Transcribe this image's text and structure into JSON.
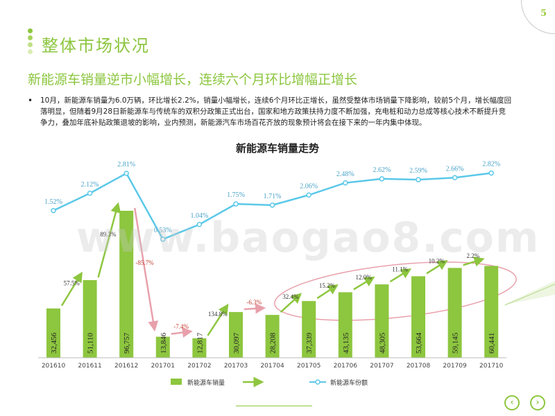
{
  "page_number": "5",
  "page_title": "整体市场状况",
  "subtitle": "新能源车销量逆市小幅增长，连续六个月环比增幅正增长",
  "bullet": "10月，新能源车销量为6.0万辆，环比增长2.2%，销量小幅增长，连续6个月环比正增长，虽然受整体市场销量下降影响，较前5个月，增长幅度回落明显，但随着9月28日新能源车与传统车的双积分政策正式出台，国家和地方政策扶持力度不断加强，充电桩和动力总成等核心技术不断提升竞争力，叠加年底补贴政策退坡的影响，业内预测，新能源汽车市场百花齐放的现象预计将会在接下来的一年内集中体现。",
  "watermark": "www.baogao8.com",
  "colors": {
    "accent": "#8cc63f",
    "bar": "#8dc63f",
    "line": "#5bc8e8",
    "negative": "#c0392b",
    "ellipse": "#e8a0ab"
  },
  "nav": {
    "prev_icon": "chevron-left-icon",
    "next_icon": "chevron-right-icon"
  },
  "chart_data": {
    "type": "bar+line",
    "title": "新能源车销量走势",
    "categories": [
      "201610",
      "201611",
      "201612",
      "201701",
      "201702",
      "201703",
      "201704",
      "201705",
      "201706",
      "201707",
      "201708",
      "201709",
      "201710"
    ],
    "series": [
      {
        "name": "新能源车销量",
        "type": "bar",
        "values": [
          32456,
          51110,
          96757,
          13846,
          12817,
          30097,
          28208,
          37339,
          43135,
          48305,
          53664,
          59145,
          60441
        ],
        "labels": [
          "32,456",
          "51,110",
          "96,757",
          "13,846",
          "12,817",
          "30,097",
          "28,208",
          "37,339",
          "43,135",
          "48,305",
          "53,664",
          "59,145",
          "60,441"
        ]
      },
      {
        "name": "新能源车份额",
        "type": "line",
        "values": [
          1.52,
          2.12,
          2.81,
          0.53,
          1.04,
          1.75,
          1.71,
          2.06,
          2.48,
          2.62,
          2.59,
          2.66,
          2.82
        ],
        "labels": [
          "1.52%",
          "2.12%",
          "2.81%",
          "0.53%",
          "1.04%",
          "1.75%",
          "1.71%",
          "2.06%",
          "2.48%",
          "2.62%",
          "2.59%",
          "2.66%",
          "2.82%"
        ]
      }
    ],
    "mom_growth": [
      {
        "label": "57.5%",
        "value": 57.5
      },
      {
        "label": "89.3%",
        "value": 89.3
      },
      {
        "label": "-85.7%",
        "value": -85.7
      },
      {
        "label": "-7.4%",
        "value": -7.4
      },
      {
        "label": "134.8%",
        "value": 134.8
      },
      {
        "label": "-6.3%",
        "value": -6.3
      },
      {
        "label": "32.4%",
        "value": 32.4
      },
      {
        "label": "15.2%",
        "value": 15.2
      },
      {
        "label": "12.0%",
        "value": 12.0
      },
      {
        "label": "11.1%",
        "value": 11.1
      },
      {
        "label": "10.2%",
        "value": 10.2
      },
      {
        "label": "2.2%",
        "value": 2.2
      }
    ],
    "legend": {
      "placement": "bottom",
      "bar_label": "新能源车销量",
      "line_label": "新能源车份额"
    }
  }
}
